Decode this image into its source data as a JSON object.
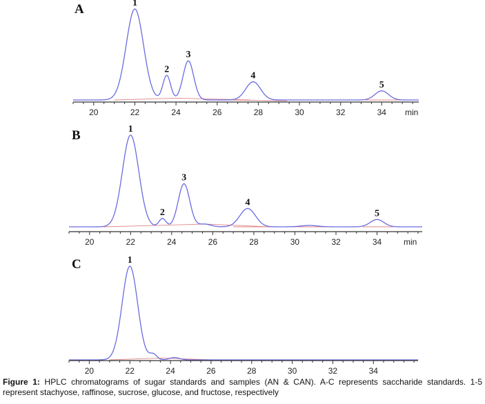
{
  "caption": {
    "label": "Figure 1:",
    "text": "HPLC chromatograms of sugar standards and samples (AN & CAN). A-C represents saccharide standards. 1-5 represent stachyose, raffinose, sucrose, glucose, and fructose, respectively"
  },
  "chart_data": [
    {
      "type": "line",
      "panel": "A",
      "x_unit": "min",
      "xlim": [
        19,
        35.8
      ],
      "ticks": [
        20,
        22,
        24,
        26,
        28,
        30,
        32,
        34
      ],
      "colors": {
        "trace": "#6a6ae0",
        "baseline": "#e08a8a"
      },
      "peaks": [
        {
          "label": "1",
          "rt": 22.0,
          "height": 1.0,
          "width": 0.42
        },
        {
          "label": "2",
          "rt": 23.55,
          "height": 0.27,
          "width": 0.19
        },
        {
          "label": "3",
          "rt": 24.6,
          "height": 0.43,
          "width": 0.26
        },
        {
          "label": "4",
          "rt": 27.75,
          "height": 0.2,
          "width": 0.36
        },
        {
          "label": "5",
          "rt": 34.0,
          "height": 0.1,
          "width": 0.33
        }
      ],
      "baseline_segments": [
        [
          [
            21.0,
            0.0
          ],
          [
            24.1,
            0.02
          ],
          [
            27.6,
            0.0
          ]
        ],
        [
          [
            26.6,
            0.0
          ],
          [
            29.4,
            -0.01
          ]
        ],
        [
          [
            33.2,
            0.0
          ],
          [
            34.9,
            0.0
          ]
        ]
      ]
    },
    {
      "type": "line",
      "panel": "B",
      "x_unit": "min",
      "xlim": [
        19,
        36.2
      ],
      "ticks": [
        20,
        22,
        24,
        26,
        28,
        30,
        32,
        34
      ],
      "colors": {
        "trace": "#6a6ae0",
        "baseline": "#e08a8a"
      },
      "peaks": [
        {
          "label": "1",
          "rt": 22.0,
          "height": 1.0,
          "width": 0.4
        },
        {
          "label": "2",
          "rt": 23.55,
          "height": 0.09,
          "width": 0.17
        },
        {
          "label": "3",
          "rt": 24.6,
          "height": 0.47,
          "width": 0.28
        },
        {
          "label": "4",
          "rt": 27.7,
          "height": 0.2,
          "width": 0.38
        },
        {
          "label": "5",
          "rt": 34.0,
          "height": 0.08,
          "width": 0.33
        }
      ],
      "minor_peaks": [
        {
          "rt": 25.6,
          "height": 0.03,
          "width": 0.3
        },
        {
          "rt": 30.7,
          "height": 0.015,
          "width": 0.4
        }
      ],
      "baseline_segments": [
        [
          [
            20.7,
            0.0
          ],
          [
            25.6,
            0.03
          ],
          [
            28.8,
            0.0
          ]
        ],
        [
          [
            27.0,
            0.0
          ],
          [
            31.5,
            0.0
          ]
        ],
        [
          [
            33.3,
            0.0
          ],
          [
            34.8,
            0.0
          ]
        ]
      ]
    },
    {
      "type": "line",
      "panel": "C",
      "x_unit": "",
      "xlim": [
        19,
        36.2
      ],
      "ticks": [
        20,
        22,
        24,
        26,
        28,
        30,
        32,
        34
      ],
      "colors": {
        "trace": "#6a6ae0",
        "baseline": "#e08a8a"
      },
      "peaks": [
        {
          "label": "1",
          "rt": 22.0,
          "height": 1.0,
          "width": 0.38
        }
      ],
      "minor_peaks": [
        {
          "rt": 23.15,
          "height": 0.06,
          "width": 0.18
        },
        {
          "rt": 24.2,
          "height": 0.025,
          "width": 0.25
        }
      ],
      "baseline_segments": [
        [
          [
            21.0,
            0.0
          ],
          [
            23.6,
            0.02
          ],
          [
            26.0,
            0.0
          ]
        ]
      ]
    }
  ]
}
